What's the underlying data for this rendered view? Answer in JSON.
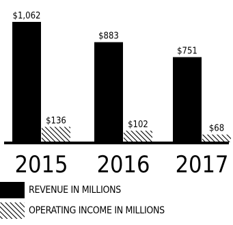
{
  "chart_data": {
    "type": "bar",
    "categories": [
      "2015",
      "2016",
      "2017"
    ],
    "series": [
      {
        "name": "REVENUE IN MILLIONS",
        "values": [
          1062,
          883,
          751
        ],
        "labels": [
          "$1,062",
          "$883",
          "$751"
        ],
        "fill": "solid",
        "color": "#000000"
      },
      {
        "name": "OPERATING INCOME IN MILLIONS",
        "values": [
          136,
          102,
          68
        ],
        "labels": [
          "$136",
          "$102",
          "$68"
        ],
        "fill": "hatched",
        "color": "#000000"
      }
    ],
    "title": "",
    "xlabel": "",
    "ylabel": "",
    "ylim": [
      0,
      1062
    ],
    "grid": false,
    "legend": "bottom-left"
  }
}
